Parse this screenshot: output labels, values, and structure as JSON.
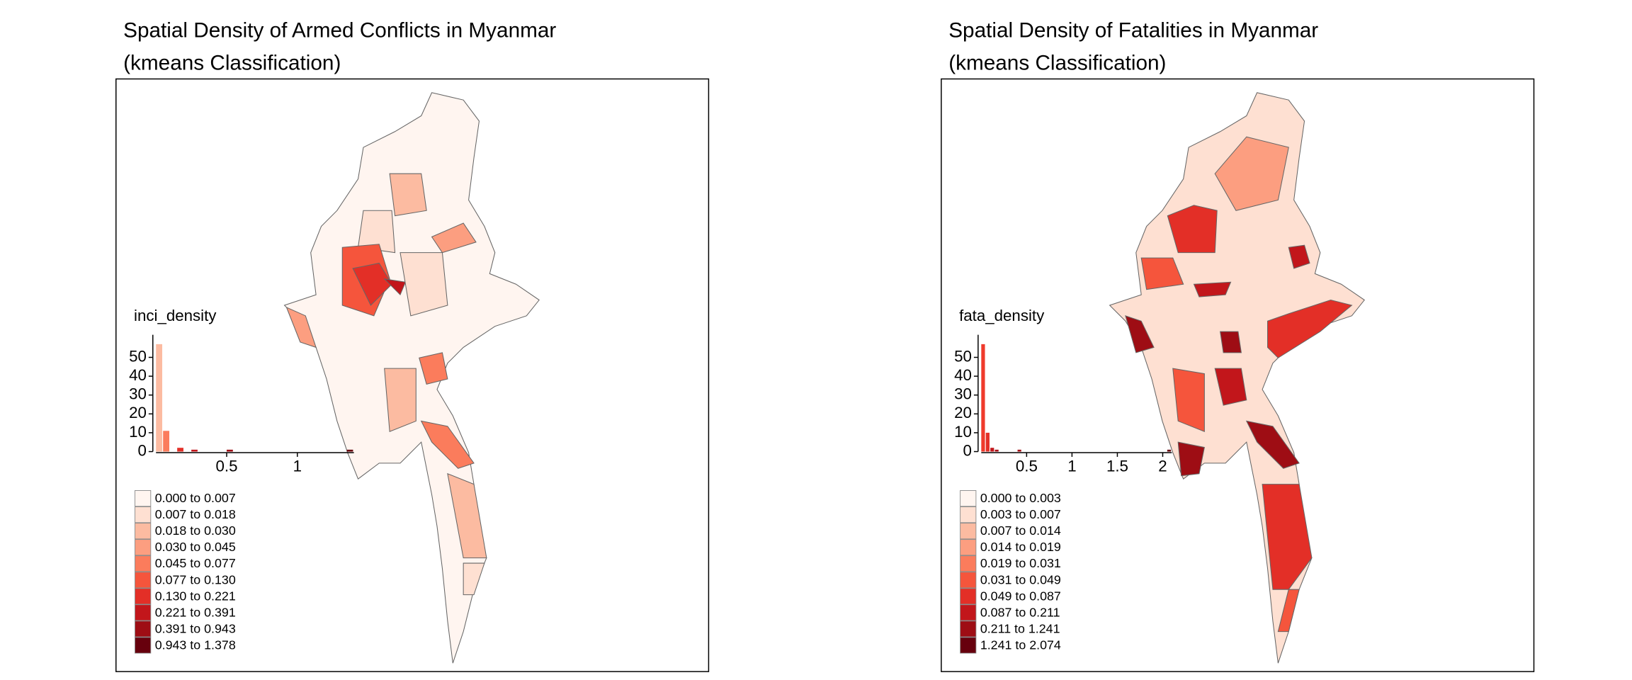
{
  "maps": [
    {
      "title": "Spatial Density of Armed Conflicts in Myanmar",
      "subtitle": "(kmeans Classification)",
      "legend_title": "inci_density",
      "classes": [
        {
          "label": "0.000 to 0.007",
          "color": "#fff5f0"
        },
        {
          "label": "0.007 to 0.018",
          "color": "#fee0d2"
        },
        {
          "label": "0.018 to 0.030",
          "color": "#fcbba1"
        },
        {
          "label": "0.030 to 0.045",
          "color": "#fc9e80"
        },
        {
          "label": "0.045 to 0.077",
          "color": "#fb7c5c"
        },
        {
          "label": "0.077 to 0.130",
          "color": "#f5553c"
        },
        {
          "label": "0.130 to 0.221",
          "color": "#e32f27"
        },
        {
          "label": "0.221 to 0.391",
          "color": "#c2161b"
        },
        {
          "label": "0.391 to 0.943",
          "color": "#9e0d14"
        },
        {
          "label": "0.943 to 1.378",
          "color": "#67000d"
        }
      ],
      "histogram": {
        "xlim": [
          0,
          1.4
        ],
        "ylim": [
          0,
          62
        ],
        "xticks": [
          0.5,
          1
        ],
        "yticks": [
          0,
          10,
          20,
          30,
          40,
          50
        ],
        "bins": [
          0,
          0.05,
          0.1,
          0.15,
          0.2,
          0.25,
          0.3,
          0.35,
          0.4,
          0.45,
          0.5,
          0.55,
          0.6,
          0.65,
          0.7,
          0.75,
          0.8,
          0.85,
          0.9,
          0.95,
          1,
          1.05,
          1.1,
          1.15,
          1.2,
          1.25,
          1.3,
          1.35,
          1.4
        ],
        "counts": [
          57,
          11,
          0,
          2,
          0,
          1,
          0,
          0,
          0,
          0,
          1,
          0,
          0,
          0,
          0,
          0,
          0,
          0,
          0,
          0,
          0,
          0,
          0,
          0,
          0,
          0,
          0,
          1
        ],
        "bar_colors": [
          "#fcbba1",
          "#fb7c5c",
          null,
          "#e32f27",
          null,
          "#c2161b",
          null,
          null,
          null,
          null,
          "#9e0d14",
          null,
          null,
          null,
          null,
          null,
          null,
          null,
          null,
          null,
          null,
          null,
          null,
          null,
          null,
          null,
          null,
          "#67000d"
        ]
      }
    },
    {
      "title": "Spatial Density of Fatalities in Myanmar",
      "subtitle": "(kmeans Classification)",
      "legend_title": "fata_density",
      "classes": [
        {
          "label": "0.000 to 0.003",
          "color": "#fff5f0"
        },
        {
          "label": "0.003 to 0.007",
          "color": "#fee0d2"
        },
        {
          "label": "0.007 to 0.014",
          "color": "#fcbba1"
        },
        {
          "label": "0.014 to 0.019",
          "color": "#fc9e80"
        },
        {
          "label": "0.019 to 0.031",
          "color": "#fb7c5c"
        },
        {
          "label": "0.031 to 0.049",
          "color": "#f5553c"
        },
        {
          "label": "0.049 to 0.087",
          "color": "#e32f27"
        },
        {
          "label": "0.087 to 0.211",
          "color": "#c2161b"
        },
        {
          "label": "0.211 to 1.241",
          "color": "#9e0d14"
        },
        {
          "label": "1.241 to 2.074",
          "color": "#67000d"
        }
      ],
      "histogram": {
        "xlim": [
          0,
          2.1
        ],
        "ylim": [
          0,
          62
        ],
        "xticks": [
          0.5,
          1,
          1.5,
          2
        ],
        "yticks": [
          0,
          10,
          20,
          30,
          40,
          50
        ],
        "bins": [
          0,
          0.05,
          0.1,
          0.15,
          0.2,
          0.25,
          0.3,
          0.35,
          0.4,
          0.45,
          0.5,
          0.55,
          0.6,
          0.65,
          0.7,
          0.75,
          0.8,
          0.85,
          0.9,
          0.95,
          1,
          1.05,
          1.1,
          1.15,
          1.2,
          1.25,
          1.3,
          1.35,
          1.4,
          1.45,
          1.5,
          1.55,
          1.6,
          1.65,
          1.7,
          1.75,
          1.8,
          1.85,
          1.9,
          1.95,
          2,
          2.05,
          2.1
        ],
        "counts": [
          57,
          10,
          2,
          1,
          0,
          0,
          0,
          0,
          1,
          0,
          0,
          0,
          0,
          0,
          0,
          0,
          0,
          0,
          0,
          0,
          0,
          0,
          0,
          0,
          0,
          0,
          0,
          0,
          0,
          0,
          0,
          0,
          0,
          0,
          0,
          0,
          0,
          0,
          0,
          0,
          0,
          1
        ],
        "bar_colors": [
          "#ef3b2c",
          "#e32f27",
          "#c2161b",
          "#a50f15",
          null,
          null,
          null,
          null,
          "#a50f15",
          null,
          null,
          null,
          null,
          null,
          null,
          null,
          null,
          null,
          null,
          null,
          null,
          null,
          null,
          null,
          null,
          null,
          null,
          null,
          null,
          null,
          null,
          null,
          null,
          null,
          null,
          null,
          null,
          null,
          null,
          null,
          null,
          "#67000d"
        ]
      }
    }
  ]
}
